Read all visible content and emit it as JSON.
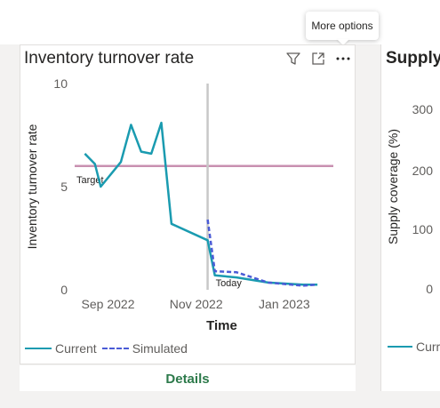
{
  "tooltip": {
    "text": "More options"
  },
  "visual": {
    "title": "Inventory turnover rate",
    "icons": [
      "filter-icon",
      "focus-mode-icon",
      "more-options-icon"
    ],
    "legend": {
      "current": "Current",
      "simulated": "Simulated"
    },
    "details_label": "Details"
  },
  "visual2": {
    "title": "Supply",
    "ylabel": "Supply coverage (%)",
    "y_ticks": [
      "300",
      "200",
      "100",
      "0"
    ],
    "legend_partial": "Curr"
  },
  "colors": {
    "current": "#1a9bb0",
    "simulated": "#4a5bd6",
    "target": "#c890b0",
    "today": "#c8c8c8",
    "details": "#2d7a4b"
  },
  "chart_data": {
    "type": "line",
    "title": "Inventory turnover rate",
    "xlabel": "Time",
    "ylabel": "Inventory turnover rate",
    "ylim": [
      0,
      10
    ],
    "y_ticks": [
      0,
      5,
      10
    ],
    "x_tick_labels": [
      "Sep 2022",
      "Nov 2022",
      "Jan 2023"
    ],
    "xlim": [
      "2022-08-20",
      "2023-02-15"
    ],
    "series": [
      {
        "name": "Current",
        "points": [
          [
            "2022-08-27",
            6.6
          ],
          [
            "2022-09-03",
            6.1
          ],
          [
            "2022-09-07",
            5.0
          ],
          [
            "2022-09-21",
            6.2
          ],
          [
            "2022-09-28",
            8.0
          ],
          [
            "2022-10-05",
            6.7
          ],
          [
            "2022-10-12",
            6.6
          ],
          [
            "2022-10-19",
            8.1
          ],
          [
            "2022-10-26",
            3.2
          ],
          [
            "2022-11-20",
            2.4
          ],
          [
            "2022-11-25",
            0.7
          ],
          [
            "2022-12-10",
            0.6
          ],
          [
            "2023-01-01",
            0.35
          ],
          [
            "2023-01-25",
            0.25
          ],
          [
            "2023-02-04",
            0.25
          ]
        ]
      },
      {
        "name": "Simulated",
        "points": [
          [
            "2022-11-20",
            3.4
          ],
          [
            "2022-11-25",
            0.9
          ],
          [
            "2022-12-10",
            0.85
          ],
          [
            "2023-01-01",
            0.35
          ],
          [
            "2023-01-25",
            0.2
          ],
          [
            "2023-02-04",
            0.25
          ]
        ]
      }
    ],
    "reference_lines": {
      "target": {
        "label": "Target",
        "y": 6.0
      },
      "today": {
        "label": "Today",
        "x": "2022-11-20"
      }
    },
    "legend_position": "bottom-left",
    "grid": false
  }
}
